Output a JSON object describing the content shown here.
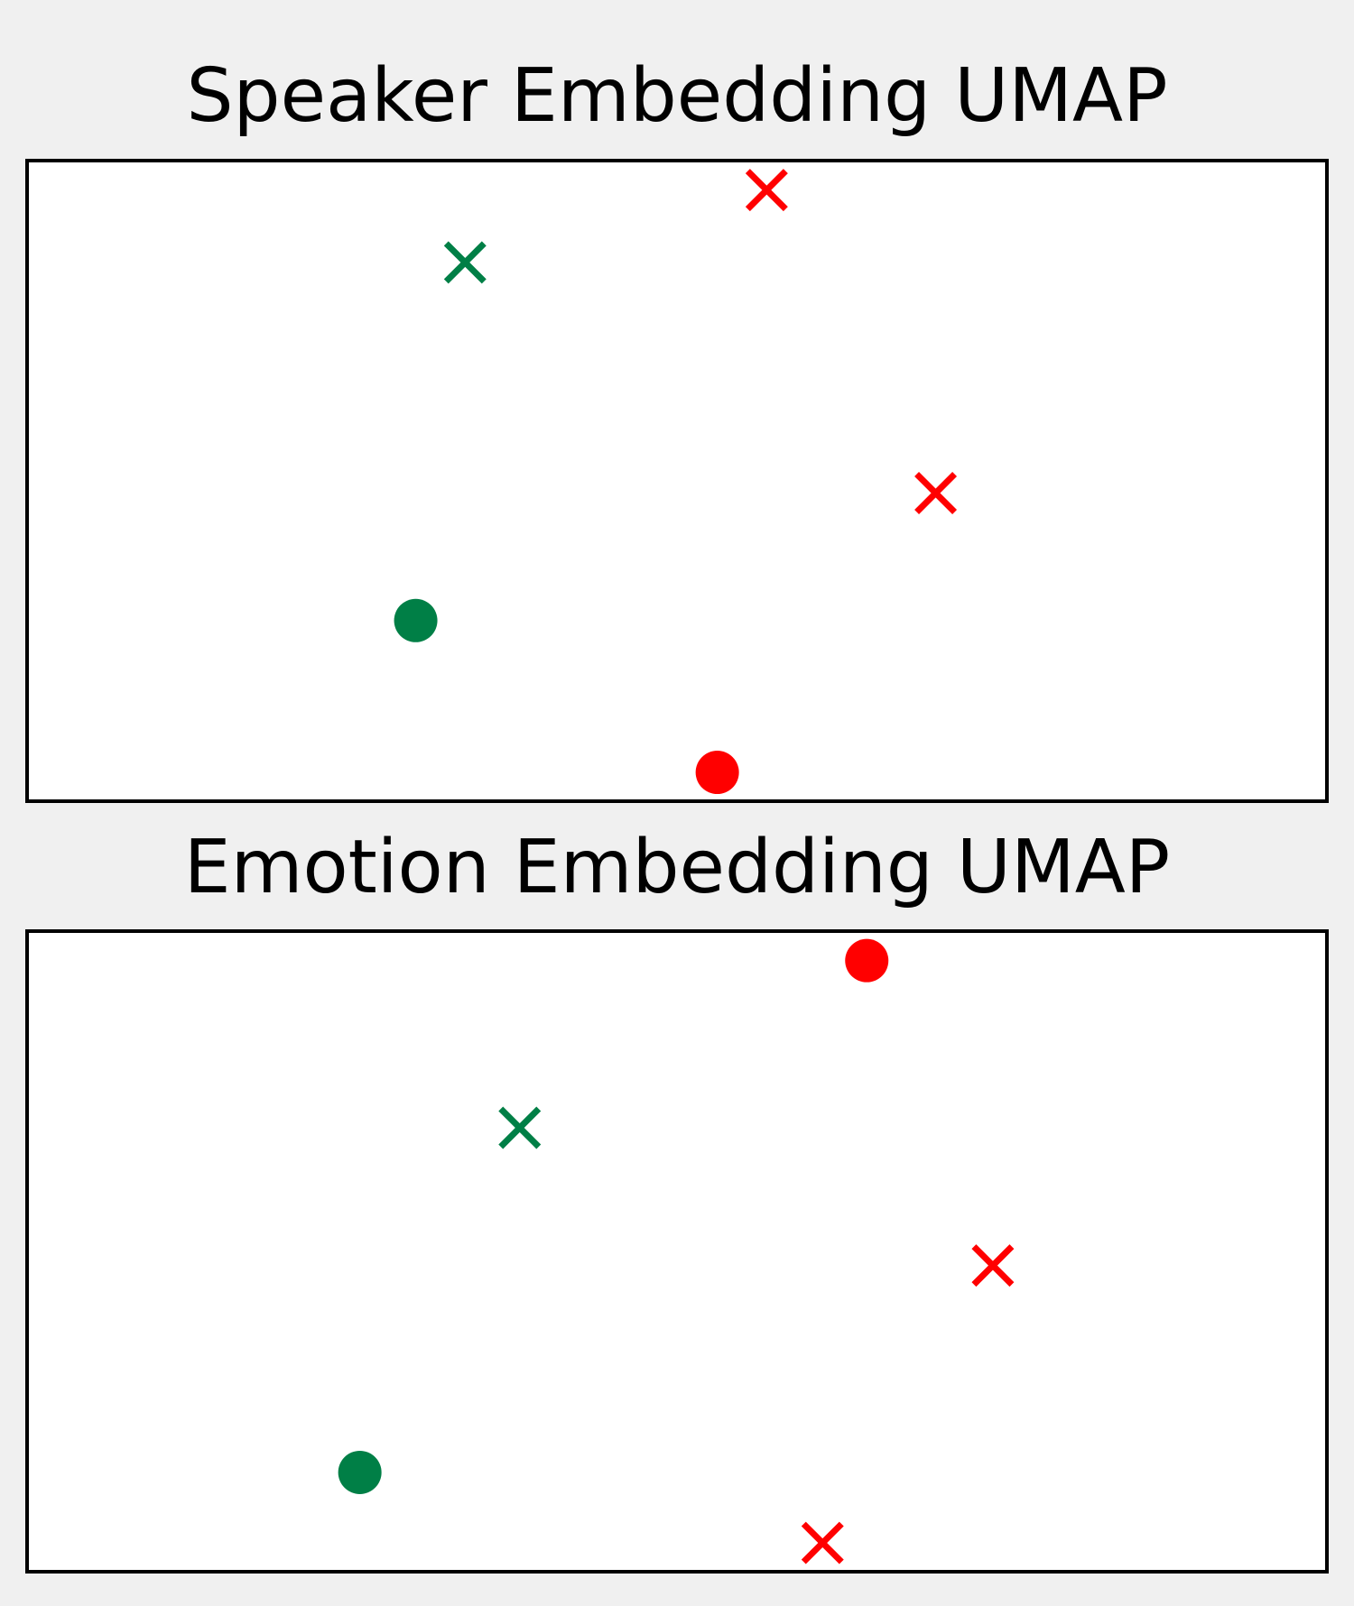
{
  "chart_data": [
    {
      "type": "scatter",
      "title": "Speaker Embedding UMAP",
      "xlabel": "",
      "ylabel": "",
      "xlim": [
        0,
        1
      ],
      "ylim": [
        0,
        1
      ],
      "axis_ticks": false,
      "grid": false,
      "legend": "none",
      "points": [
        {
          "x": 0.337,
          "y": 0.841,
          "marker": "x",
          "color": "#007f46"
        },
        {
          "x": 0.569,
          "y": 0.954,
          "marker": "x",
          "color": "#ff0000"
        },
        {
          "x": 0.699,
          "y": 0.481,
          "marker": "x",
          "color": "#ff0000"
        },
        {
          "x": 0.299,
          "y": 0.282,
          "marker": "o",
          "color": "#007f46"
        },
        {
          "x": 0.531,
          "y": 0.045,
          "marker": "o",
          "color": "#ff0000"
        }
      ]
    },
    {
      "type": "scatter",
      "title": "Emotion Embedding UMAP",
      "xlabel": "",
      "ylabel": "",
      "xlim": [
        0,
        1
      ],
      "ylim": [
        0,
        1
      ],
      "axis_ticks": false,
      "grid": false,
      "legend": "none",
      "points": [
        {
          "x": 0.646,
          "y": 0.954,
          "marker": "o",
          "color": "#ff0000"
        },
        {
          "x": 0.379,
          "y": 0.693,
          "marker": "x",
          "color": "#007f46"
        },
        {
          "x": 0.743,
          "y": 0.478,
          "marker": "x",
          "color": "#ff0000"
        },
        {
          "x": 0.256,
          "y": 0.155,
          "marker": "o",
          "color": "#007f46"
        },
        {
          "x": 0.612,
          "y": 0.045,
          "marker": "x",
          "color": "#ff0000"
        }
      ]
    }
  ]
}
